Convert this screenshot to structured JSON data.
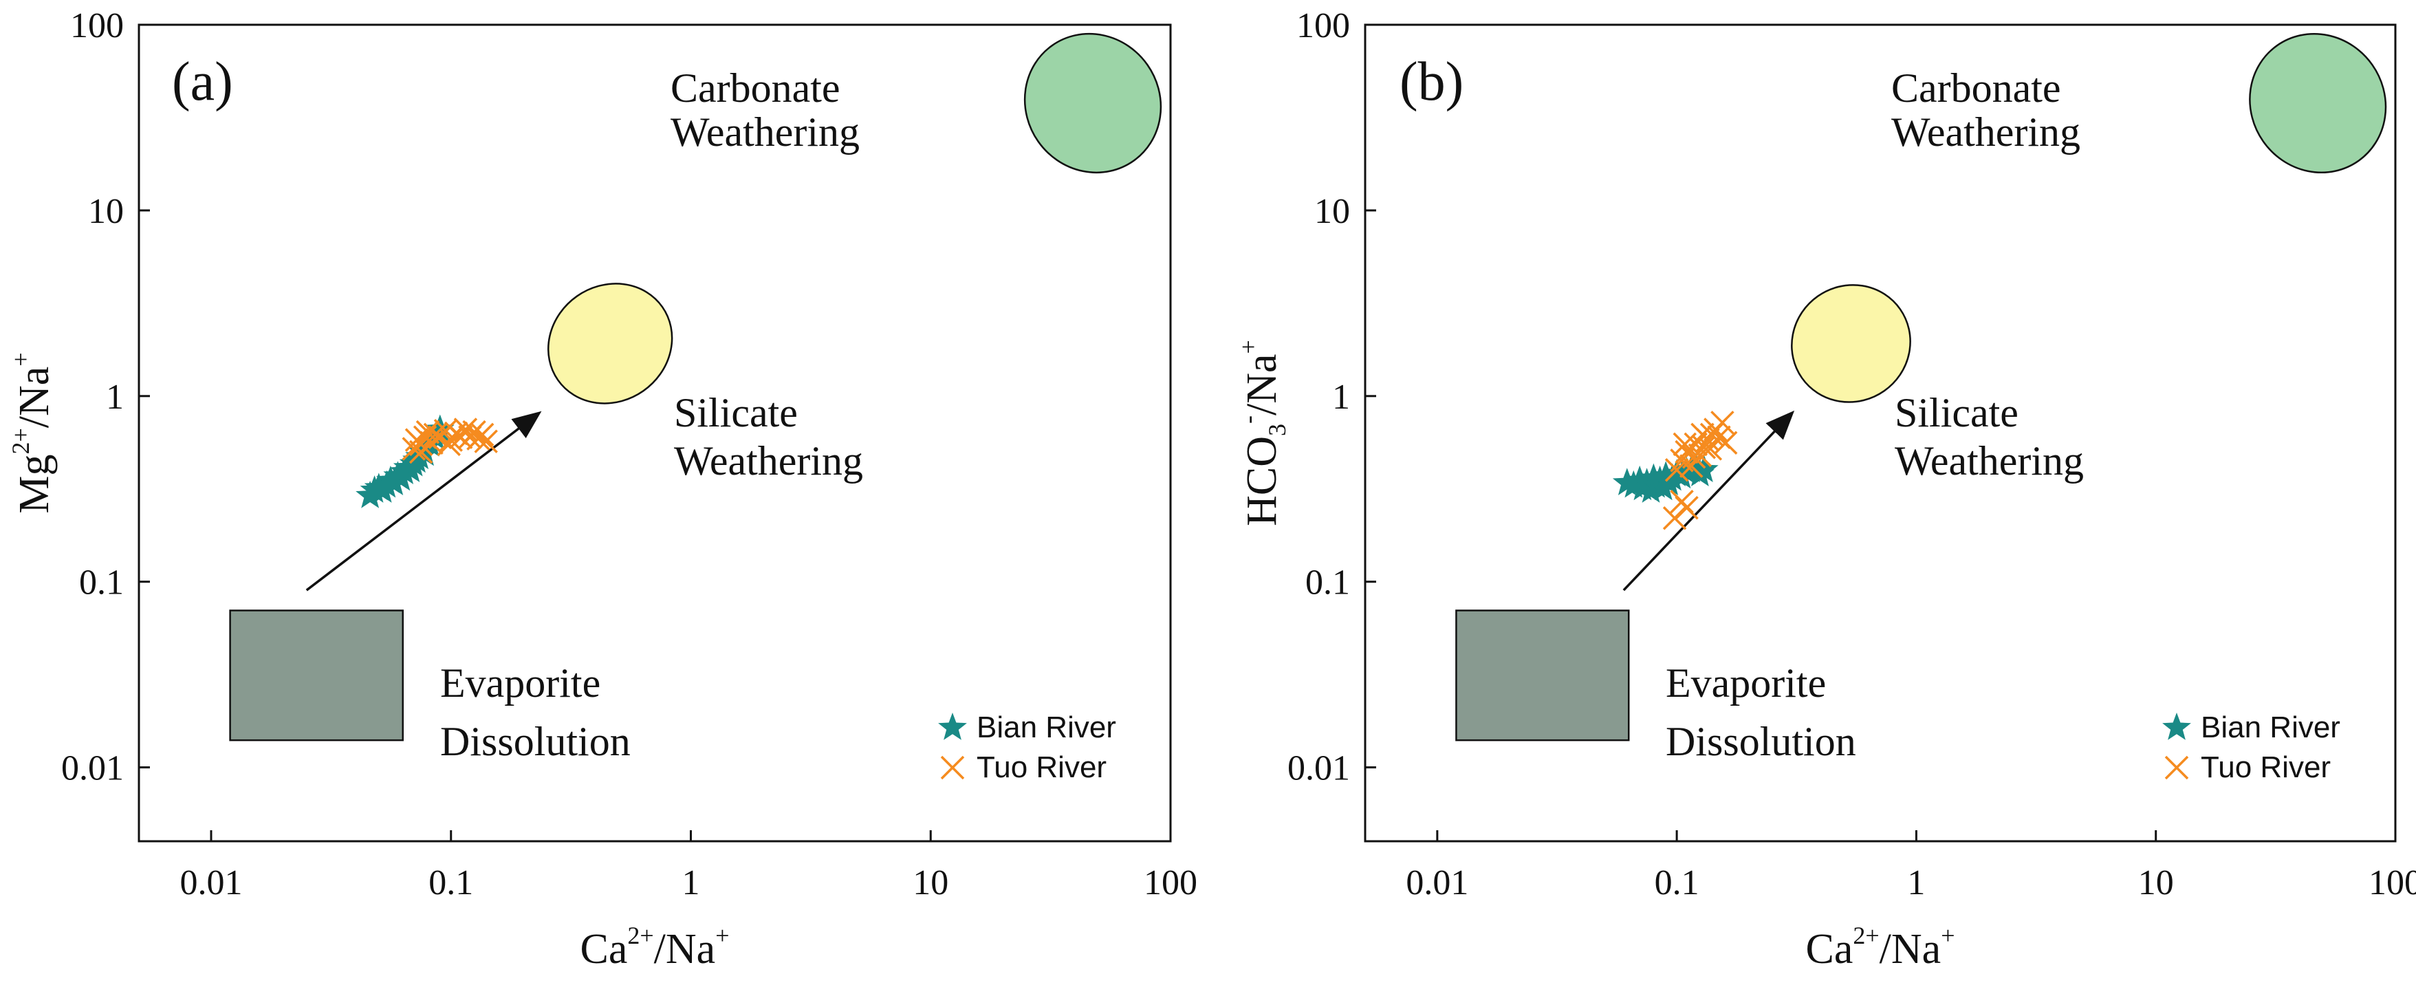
{
  "chart_data": [
    {
      "type": "scatter",
      "panel_label": "(a)",
      "x_scale": "log",
      "y_scale": "log",
      "xlim": [
        0.005,
        100
      ],
      "ylim": [
        0.004,
        100
      ],
      "x_ticks": [
        {
          "value": 0.01,
          "label": "0.01"
        },
        {
          "value": 0.1,
          "label": "0.1"
        },
        {
          "value": 1,
          "label": "1"
        },
        {
          "value": 10,
          "label": "10"
        },
        {
          "value": 100,
          "label": "100"
        }
      ],
      "y_ticks": [
        {
          "value": 0.01,
          "label": "0.01"
        },
        {
          "value": 0.1,
          "label": "0.1"
        },
        {
          "value": 1,
          "label": "1"
        },
        {
          "value": 10,
          "label": "10"
        },
        {
          "value": 100,
          "label": "100"
        }
      ],
      "xlabel": {
        "base": "Ca",
        "sup": "2+",
        "rest": "/Na",
        "sup2": "+"
      },
      "ylabel": {
        "base": "Mg",
        "sup": "2+",
        "rest": "/Na",
        "sup2": "+"
      },
      "regions": [
        {
          "name": "Carbonate Weathering",
          "lines": [
            "Carbonate",
            "Weathering"
          ],
          "shape": "ellipse",
          "center": [
            50,
            40
          ],
          "x_range": [
            25,
            90
          ],
          "y_range": [
            13,
            110
          ],
          "color": "#9cd4a7"
        },
        {
          "name": "Silicate Weathering",
          "lines": [
            "Silicate",
            "Weathering"
          ],
          "shape": "ellipse",
          "center": [
            0.45,
            2.0
          ],
          "x_range": [
            0.25,
            0.85
          ],
          "y_range": [
            0.8,
            4.6
          ],
          "color": "#fbf6a9"
        },
        {
          "name": "Evaporite Dissolution",
          "lines": [
            "Evaporite",
            "Dissolution"
          ],
          "shape": "rect",
          "x_range": [
            0.012,
            0.063
          ],
          "y_range": [
            0.014,
            0.07
          ],
          "color": "#889a90"
        }
      ],
      "arrow": {
        "from": [
          0.025,
          0.09
        ],
        "to": [
          0.23,
          0.8
        ]
      },
      "series": [
        {
          "name": "Bian River",
          "marker": "star",
          "color": "#1a8a86",
          "points": [
            [
              0.046,
              0.29
            ],
            [
              0.048,
              0.31
            ],
            [
              0.05,
              0.32
            ],
            [
              0.052,
              0.31
            ],
            [
              0.054,
              0.33
            ],
            [
              0.056,
              0.35
            ],
            [
              0.058,
              0.34
            ],
            [
              0.06,
              0.37
            ],
            [
              0.062,
              0.36
            ],
            [
              0.064,
              0.39
            ],
            [
              0.066,
              0.41
            ],
            [
              0.068,
              0.4
            ],
            [
              0.07,
              0.43
            ],
            [
              0.072,
              0.45
            ],
            [
              0.074,
              0.47
            ],
            [
              0.076,
              0.5
            ],
            [
              0.078,
              0.49
            ],
            [
              0.082,
              0.55
            ],
            [
              0.086,
              0.6
            ],
            [
              0.09,
              0.66
            ]
          ]
        },
        {
          "name": "Tuo River",
          "marker": "x",
          "color": "#f58b1f",
          "points": [
            [
              0.07,
              0.52
            ],
            [
              0.072,
              0.58
            ],
            [
              0.075,
              0.55
            ],
            [
              0.078,
              0.6
            ],
            [
              0.08,
              0.64
            ],
            [
              0.083,
              0.56
            ],
            [
              0.086,
              0.62
            ],
            [
              0.09,
              0.6
            ],
            [
              0.095,
              0.65
            ],
            [
              0.1,
              0.58
            ],
            [
              0.105,
              0.63
            ],
            [
              0.11,
              0.6
            ],
            [
              0.115,
              0.66
            ],
            [
              0.12,
              0.6
            ],
            [
              0.125,
              0.64
            ],
            [
              0.13,
              0.59
            ],
            [
              0.135,
              0.62
            ],
            [
              0.14,
              0.57
            ],
            [
              0.075,
              0.5
            ],
            [
              0.098,
              0.55
            ]
          ]
        }
      ],
      "legend": {
        "position": "bottom-right",
        "entries": [
          "Bian River",
          "Tuo River"
        ]
      }
    },
    {
      "type": "scatter",
      "panel_label": "(b)",
      "x_scale": "log",
      "y_scale": "log",
      "xlim": [
        0.005,
        100
      ],
      "ylim": [
        0.004,
        100
      ],
      "x_ticks": [
        {
          "value": 0.01,
          "label": "0.01"
        },
        {
          "value": 0.1,
          "label": "0.1"
        },
        {
          "value": 1,
          "label": "1"
        },
        {
          "value": 10,
          "label": "10"
        },
        {
          "value": 100,
          "label": "100"
        }
      ],
      "y_ticks": [
        {
          "value": 0.01,
          "label": "0.01"
        },
        {
          "value": 0.1,
          "label": "0.1"
        },
        {
          "value": 1,
          "label": "1"
        },
        {
          "value": 10,
          "label": "10"
        },
        {
          "value": 100,
          "label": "100"
        }
      ],
      "xlabel": {
        "base": "Ca",
        "sup": "2+",
        "rest": "/Na",
        "sup2": "+"
      },
      "ylabel": {
        "base": "HCO",
        "sub": "3",
        "sup": "-",
        "rest": "/Na",
        "sup2": "+"
      },
      "regions": [
        {
          "name": "Carbonate Weathering",
          "lines": [
            "Carbonate",
            "Weathering"
          ],
          "shape": "ellipse",
          "center": [
            50,
            40
          ],
          "x_range": [
            25,
            90
          ],
          "y_range": [
            13,
            110
          ],
          "color": "#9cd4a7"
        },
        {
          "name": "Silicate Weathering",
          "lines": [
            "Silicate",
            "Weathering"
          ],
          "shape": "ellipse",
          "center": [
            0.52,
            2.0
          ],
          "x_range": [
            0.3,
            0.95
          ],
          "y_range": [
            0.8,
            4.6
          ],
          "color": "#fbf6a9"
        },
        {
          "name": "Evaporite Dissolution",
          "lines": [
            "Evaporite",
            "Dissolution"
          ],
          "shape": "rect",
          "x_range": [
            0.012,
            0.063
          ],
          "y_range": [
            0.014,
            0.07
          ],
          "color": "#889a90"
        }
      ],
      "arrow": {
        "from": [
          0.06,
          0.09
        ],
        "to": [
          0.3,
          0.8
        ]
      },
      "series": [
        {
          "name": "Bian River",
          "marker": "star",
          "color": "#1a8a86",
          "points": [
            [
              0.062,
              0.34
            ],
            [
              0.066,
              0.33
            ],
            [
              0.07,
              0.35
            ],
            [
              0.072,
              0.32
            ],
            [
              0.075,
              0.34
            ],
            [
              0.078,
              0.31
            ],
            [
              0.08,
              0.36
            ],
            [
              0.082,
              0.33
            ],
            [
              0.085,
              0.35
            ],
            [
              0.088,
              0.32
            ],
            [
              0.09,
              0.37
            ],
            [
              0.093,
              0.34
            ],
            [
              0.096,
              0.36
            ],
            [
              0.1,
              0.38
            ],
            [
              0.105,
              0.37
            ],
            [
              0.11,
              0.39
            ],
            [
              0.115,
              0.4
            ],
            [
              0.12,
              0.41
            ],
            [
              0.125,
              0.38
            ],
            [
              0.13,
              0.4
            ]
          ]
        },
        {
          "name": "Tuo River",
          "marker": "x",
          "color": "#f58b1f",
          "points": [
            [
              0.098,
              0.22
            ],
            [
              0.105,
              0.27
            ],
            [
              0.11,
              0.25
            ],
            [
              0.1,
              0.4
            ],
            [
              0.105,
              0.45
            ],
            [
              0.11,
              0.5
            ],
            [
              0.115,
              0.42
            ],
            [
              0.12,
              0.55
            ],
            [
              0.125,
              0.48
            ],
            [
              0.13,
              0.53
            ],
            [
              0.135,
              0.58
            ],
            [
              0.14,
              0.62
            ],
            [
              0.145,
              0.66
            ],
            [
              0.15,
              0.6
            ],
            [
              0.155,
              0.72
            ],
            [
              0.16,
              0.56
            ],
            [
              0.108,
              0.55
            ],
            [
              0.118,
              0.47
            ],
            [
              0.128,
              0.62
            ],
            [
              0.138,
              0.52
            ]
          ]
        }
      ],
      "legend": {
        "position": "bottom-right",
        "entries": [
          "Bian River",
          "Tuo River"
        ]
      }
    }
  ]
}
